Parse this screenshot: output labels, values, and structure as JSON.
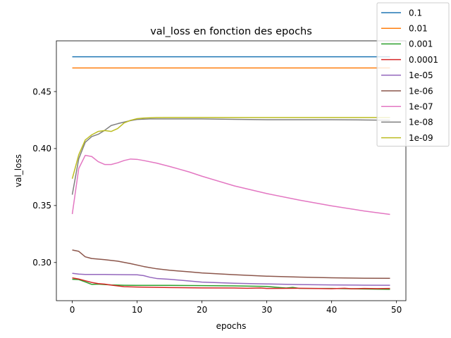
{
  "chart_data": {
    "type": "line",
    "title": "val_loss en fonction des epochs",
    "xlabel": "epochs",
    "ylabel": "val_loss",
    "xlim": [
      -2.45,
      51.45
    ],
    "ylim": [
      0.2665,
      0.4945
    ],
    "xticks": [
      0,
      10,
      20,
      30,
      40,
      50
    ],
    "xtick_labels": [
      "0",
      "10",
      "20",
      "30",
      "40",
      "50"
    ],
    "yticks": [
      0.3,
      0.35,
      0.4,
      0.45
    ],
    "ytick_labels": [
      "0.30",
      "0.35",
      "0.40",
      "0.45"
    ],
    "grid": false,
    "legend_position": "top-right",
    "series": [
      {
        "name": "0.1",
        "color": "#1f77b4",
        "points": [
          [
            0,
            0.4805
          ],
          [
            49,
            0.4805
          ]
        ]
      },
      {
        "name": "0.01",
        "color": "#ff7f0e",
        "points": [
          [
            0,
            0.4707
          ],
          [
            49,
            0.4707
          ]
        ]
      },
      {
        "name": "0.001",
        "color": "#2ca02c",
        "points": [
          [
            0,
            0.2853
          ],
          [
            1,
            0.285
          ],
          [
            2,
            0.283
          ],
          [
            3,
            0.2808
          ],
          [
            4,
            0.281
          ],
          [
            5,
            0.2806
          ],
          [
            6,
            0.2803
          ],
          [
            8,
            0.28
          ],
          [
            10,
            0.2799
          ],
          [
            15,
            0.2799
          ],
          [
            20,
            0.2797
          ],
          [
            25,
            0.2795
          ],
          [
            30,
            0.279
          ],
          [
            32,
            0.278
          ],
          [
            33,
            0.2776
          ],
          [
            34,
            0.2782
          ],
          [
            35,
            0.2773
          ],
          [
            40,
            0.2772
          ],
          [
            45,
            0.2768
          ],
          [
            49,
            0.2765
          ]
        ]
      },
      {
        "name": "0.0001",
        "color": "#d62728",
        "points": [
          [
            0,
            0.2865
          ],
          [
            1,
            0.2855
          ],
          [
            2,
            0.284
          ],
          [
            3,
            0.2825
          ],
          [
            4,
            0.2815
          ],
          [
            5,
            0.281
          ],
          [
            6,
            0.2802
          ],
          [
            7,
            0.2795
          ],
          [
            8,
            0.2788
          ],
          [
            10,
            0.2785
          ],
          [
            15,
            0.278
          ],
          [
            20,
            0.2777
          ],
          [
            25,
            0.2776
          ],
          [
            27,
            0.2774
          ],
          [
            29,
            0.2776
          ],
          [
            30,
            0.2772
          ],
          [
            35,
            0.2774
          ],
          [
            40,
            0.277
          ],
          [
            42,
            0.2774
          ],
          [
            43,
            0.277
          ],
          [
            45,
            0.2772
          ],
          [
            47,
            0.2771
          ],
          [
            49,
            0.2772
          ]
        ]
      },
      {
        "name": "1e-05",
        "color": "#9467bd",
        "points": [
          [
            0,
            0.2905
          ],
          [
            1,
            0.2898
          ],
          [
            2,
            0.2895
          ],
          [
            3,
            0.2895
          ],
          [
            5,
            0.2895
          ],
          [
            7,
            0.2894
          ],
          [
            10,
            0.2892
          ],
          [
            11,
            0.2885
          ],
          [
            12,
            0.287
          ],
          [
            13,
            0.286
          ],
          [
            15,
            0.2853
          ],
          [
            18,
            0.2838
          ],
          [
            20,
            0.2828
          ],
          [
            25,
            0.2818
          ],
          [
            30,
            0.2812
          ],
          [
            35,
            0.2806
          ],
          [
            40,
            0.2803
          ],
          [
            45,
            0.2801
          ],
          [
            49,
            0.28
          ]
        ]
      },
      {
        "name": "1e-06",
        "color": "#8c564b",
        "points": [
          [
            0,
            0.311
          ],
          [
            1,
            0.3098
          ],
          [
            2,
            0.305
          ],
          [
            3,
            0.3035
          ],
          [
            5,
            0.3025
          ],
          [
            7,
            0.3012
          ],
          [
            9,
            0.299
          ],
          [
            11,
            0.2965
          ],
          [
            13,
            0.2945
          ],
          [
            15,
            0.2932
          ],
          [
            18,
            0.2918
          ],
          [
            20,
            0.2908
          ],
          [
            25,
            0.2893
          ],
          [
            30,
            0.288
          ],
          [
            35,
            0.2872
          ],
          [
            40,
            0.2866
          ],
          [
            45,
            0.2862
          ],
          [
            49,
            0.2861
          ]
        ]
      },
      {
        "name": "1e-07",
        "color": "#e377c2",
        "points": [
          [
            0,
            0.3425
          ],
          [
            1,
            0.3825
          ],
          [
            2,
            0.394
          ],
          [
            3,
            0.393
          ],
          [
            4,
            0.3885
          ],
          [
            5,
            0.386
          ],
          [
            6,
            0.386
          ],
          [
            7,
            0.3875
          ],
          [
            8,
            0.3895
          ],
          [
            9,
            0.3908
          ],
          [
            10,
            0.3905
          ],
          [
            11,
            0.3895
          ],
          [
            13,
            0.3872
          ],
          [
            15,
            0.3843
          ],
          [
            18,
            0.3795
          ],
          [
            20,
            0.3757
          ],
          [
            25,
            0.3672
          ],
          [
            30,
            0.3605
          ],
          [
            35,
            0.3548
          ],
          [
            40,
            0.3497
          ],
          [
            45,
            0.3452
          ],
          [
            49,
            0.3422
          ]
        ]
      },
      {
        "name": "1e-08",
        "color": "#7f7f7f",
        "points": [
          [
            0,
            0.3595
          ],
          [
            1,
            0.391
          ],
          [
            2,
            0.4055
          ],
          [
            3,
            0.4105
          ],
          [
            4,
            0.4125
          ],
          [
            5,
            0.416
          ],
          [
            6,
            0.4202
          ],
          [
            7,
            0.4218
          ],
          [
            8,
            0.4232
          ],
          [
            9,
            0.4245
          ],
          [
            10,
            0.4255
          ],
          [
            12,
            0.426
          ],
          [
            15,
            0.426
          ],
          [
            20,
            0.426
          ],
          [
            25,
            0.4256
          ],
          [
            30,
            0.4253
          ],
          [
            35,
            0.4253
          ],
          [
            40,
            0.4253
          ],
          [
            45,
            0.4251
          ],
          [
            49,
            0.4248
          ]
        ]
      },
      {
        "name": "1e-09",
        "color": "#bcbd22",
        "points": [
          [
            0,
            0.3735
          ],
          [
            1,
            0.3945
          ],
          [
            2,
            0.4075
          ],
          [
            3,
            0.412
          ],
          [
            4,
            0.415
          ],
          [
            5,
            0.4158
          ],
          [
            6,
            0.415
          ],
          [
            7,
            0.4175
          ],
          [
            8,
            0.4225
          ],
          [
            9,
            0.4248
          ],
          [
            10,
            0.4262
          ],
          [
            11,
            0.4268
          ],
          [
            13,
            0.4272
          ],
          [
            15,
            0.4273
          ],
          [
            20,
            0.4273
          ],
          [
            25,
            0.4272
          ],
          [
            30,
            0.4272
          ],
          [
            35,
            0.4272
          ],
          [
            40,
            0.4272
          ],
          [
            45,
            0.4272
          ],
          [
            49,
            0.4272
          ]
        ]
      }
    ]
  }
}
